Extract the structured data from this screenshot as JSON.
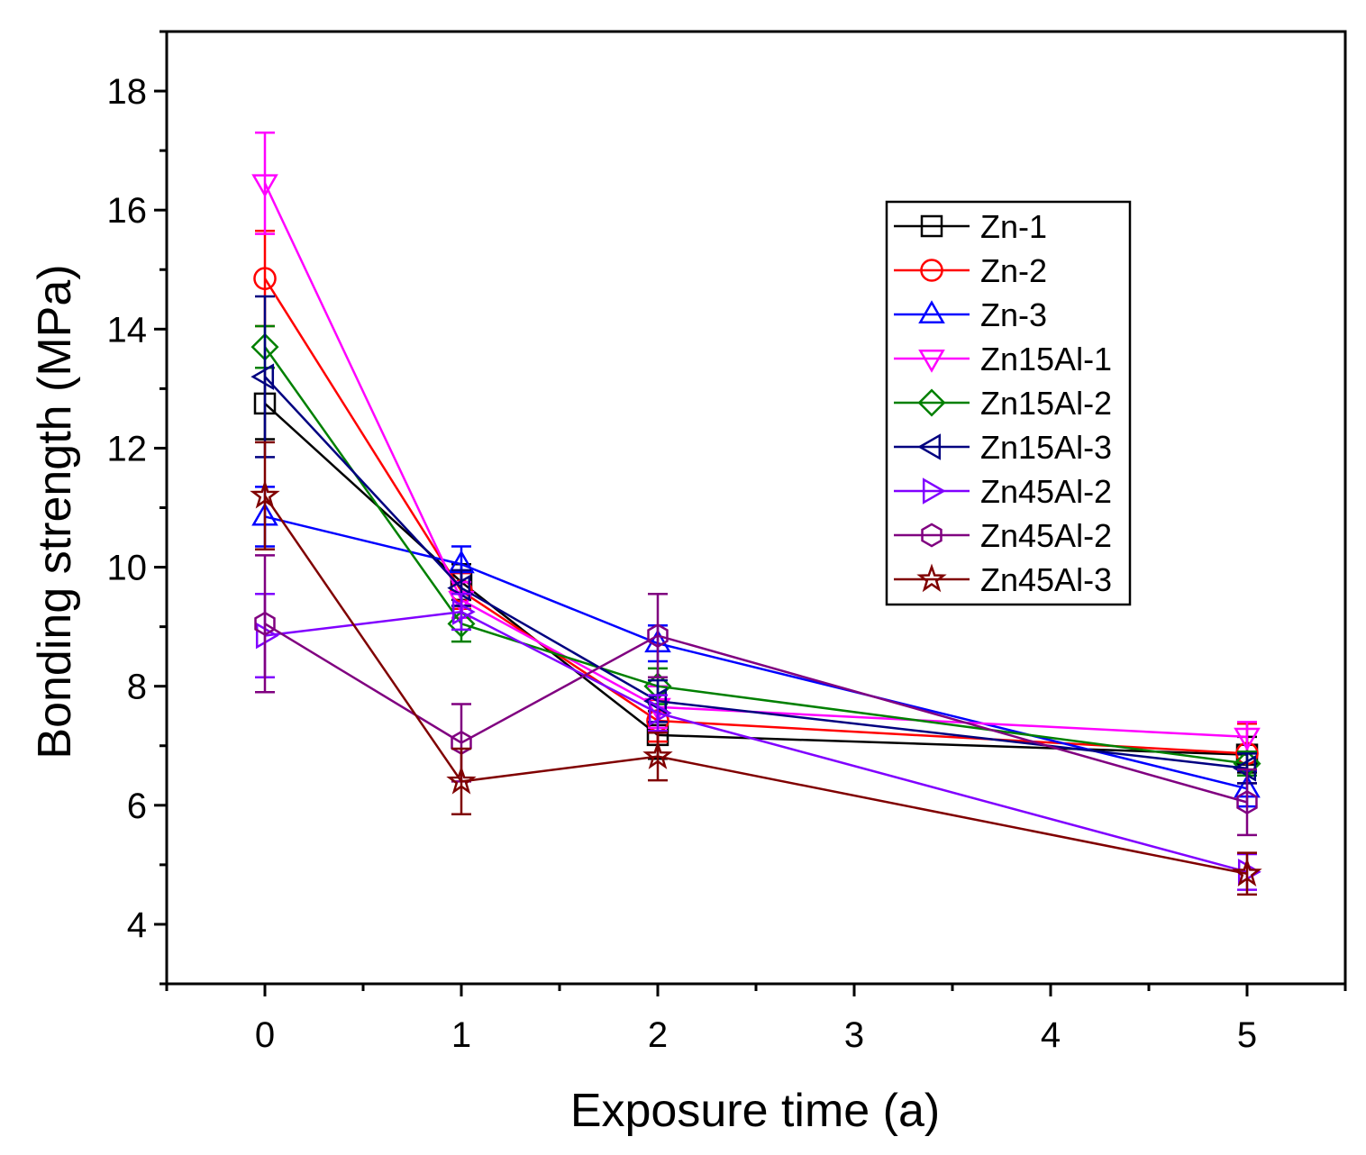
{
  "chart_data": {
    "type": "line",
    "title": "",
    "xlabel": "Exposure time (a)",
    "ylabel": "Bonding strength (MPa)",
    "xlim": [
      -0.5,
      5.5
    ],
    "ylim": [
      3,
      19
    ],
    "xticks": [
      0,
      1,
      2,
      3,
      4,
      5
    ],
    "yticks": [
      4,
      6,
      8,
      10,
      12,
      14,
      16,
      18
    ],
    "x": [
      0,
      1,
      2,
      5
    ],
    "legend_position": "top-right",
    "series": [
      {
        "name": "Zn-1",
        "color": "#000000",
        "marker": "square",
        "values": [
          12.75,
          9.75,
          7.18,
          6.85
        ],
        "errors": [
          0.6,
          0.3,
          0.4,
          0.3
        ]
      },
      {
        "name": "Zn-2",
        "color": "#ff0000",
        "marker": "circle",
        "values": [
          14.85,
          9.6,
          7.42,
          6.87
        ],
        "errors": [
          0.8,
          0.3,
          0.35,
          0.5
        ]
      },
      {
        "name": "Zn-3",
        "color": "#0000ff",
        "marker": "triangle-up",
        "values": [
          10.85,
          10.05,
          8.72,
          6.28
        ],
        "errors": [
          0.5,
          0.3,
          0.3,
          0.3
        ]
      },
      {
        "name": "Zn15Al-1",
        "color": "#ff00ff",
        "marker": "triangle-down",
        "values": [
          16.45,
          9.45,
          7.65,
          7.15
        ],
        "errors": [
          0.85,
          0.3,
          0.35,
          0.25
        ]
      },
      {
        "name": "Zn15Al-2",
        "color": "#008000",
        "marker": "diamond",
        "values": [
          13.7,
          9.05,
          8.0,
          6.7
        ],
        "errors": [
          0.35,
          0.3,
          0.3,
          0.2
        ]
      },
      {
        "name": "Zn15Al-3",
        "color": "#000080",
        "marker": "triangle-left",
        "values": [
          13.2,
          9.65,
          7.75,
          6.62
        ],
        "errors": [
          1.35,
          0.3,
          0.35,
          0.25
        ]
      },
      {
        "name": "Zn45Al-2",
        "color": "#8000ff",
        "marker": "triangle-right",
        "values": [
          8.85,
          9.25,
          7.55,
          4.88
        ],
        "errors": [
          0.7,
          0.3,
          0.3,
          0.3
        ]
      },
      {
        "name": "Zn45Al-2",
        "color": "#800080",
        "marker": "hexagon",
        "values": [
          9.05,
          7.05,
          8.85,
          6.05
        ],
        "errors": [
          1.15,
          0.65,
          0.7,
          0.55
        ]
      },
      {
        "name": "Zn45Al-3",
        "color": "#800000",
        "marker": "star",
        "values": [
          11.2,
          6.4,
          6.82,
          4.85
        ],
        "errors": [
          0.9,
          0.55,
          0.4,
          0.35
        ]
      }
    ]
  }
}
